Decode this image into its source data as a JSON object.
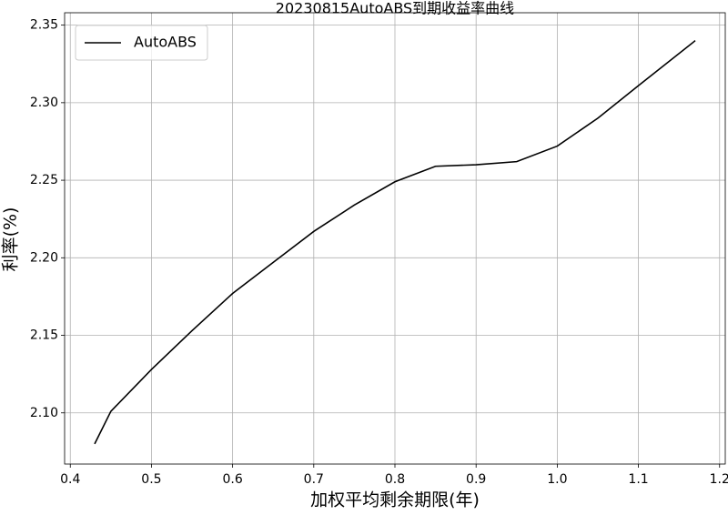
{
  "chart_data": {
    "type": "line",
    "title": "20230815AutoABS到期收益率曲线",
    "x_label": "加权平均剩余期限(年)",
    "y_label": "利率(%)",
    "x": [
      0.43,
      0.45,
      0.5,
      0.55,
      0.6,
      0.65,
      0.7,
      0.75,
      0.8,
      0.85,
      0.9,
      0.95,
      1.0,
      1.05,
      1.1,
      1.17
    ],
    "series": [
      {
        "name": "AutoABS",
        "color": "#000000",
        "values": [
          2.08,
          2.101,
          2.128,
          2.153,
          2.177,
          2.197,
          2.217,
          2.234,
          2.249,
          2.259,
          2.26,
          2.262,
          2.272,
          2.29,
          2.311,
          2.34
        ]
      }
    ],
    "xlim": [
      0.393,
      1.207
    ],
    "ylim": [
      2.067,
      2.358
    ],
    "xticks": [
      {
        "value": 0.4,
        "label": "0.4"
      },
      {
        "value": 0.5,
        "label": "0.5"
      },
      {
        "value": 0.6,
        "label": "0.6"
      },
      {
        "value": 0.7,
        "label": "0.7"
      },
      {
        "value": 0.8,
        "label": "0.8"
      },
      {
        "value": 0.9,
        "label": "0.9"
      },
      {
        "value": 1.0,
        "label": "1.0"
      },
      {
        "value": 1.1,
        "label": "1.1"
      },
      {
        "value": 1.2,
        "label": "1.2"
      }
    ],
    "yticks": [
      {
        "value": 2.1,
        "label": "2.10"
      },
      {
        "value": 2.15,
        "label": "2.15"
      },
      {
        "value": 2.2,
        "label": "2.20"
      },
      {
        "value": 2.25,
        "label": "2.25"
      },
      {
        "value": 2.3,
        "label": "2.30"
      },
      {
        "value": 2.35,
        "label": "2.35"
      }
    ],
    "grid": true,
    "legend": "upper-left"
  }
}
